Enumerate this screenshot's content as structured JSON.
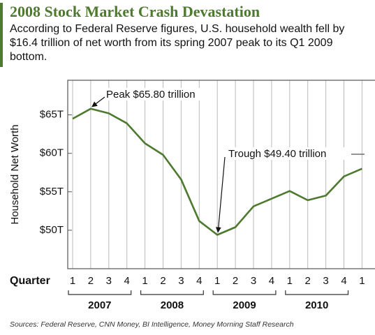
{
  "title": "2008 Stock Market Crash Devastation",
  "subtitle": "According to Federal Reserve figures, U.S. household wealth fell by $16.4 trillion of net worth from its spring 2007 peak to its Q1 2009 bottom.",
  "source": "Sources: Federal Reserve, CNN Money, BI Intelligence, Money Morning Staff Research",
  "chart_data": {
    "type": "line",
    "x_label": "Quarter",
    "y_label": "Household Net Worth",
    "categories": [
      "1",
      "2",
      "3",
      "4",
      "1",
      "2",
      "3",
      "4",
      "1",
      "2",
      "3",
      "4",
      "1",
      "2",
      "3",
      "4",
      "1"
    ],
    "year_groups": [
      "2007",
      "2008",
      "2009",
      "2010"
    ],
    "series": [
      {
        "name": "Household Net Worth",
        "color": "#4e7a2f",
        "values": [
          64.5,
          65.8,
          65.2,
          63.9,
          61.3,
          59.8,
          56.6,
          51.2,
          49.4,
          50.4,
          53.1,
          54.1,
          55.1,
          53.9,
          54.5,
          57.0,
          58.0
        ]
      }
    ],
    "annotations": [
      "Peak $65.80 trillion",
      "Trough $49.40 trillion"
    ],
    "ylim": [
      45,
      69.5
    ],
    "yticks": [
      {
        "value": 50,
        "label": "$50T"
      },
      {
        "value": 55,
        "label": "$55T"
      },
      {
        "value": 60,
        "label": "$60T"
      },
      {
        "value": 65,
        "label": "$65T"
      }
    ],
    "grid": "x"
  }
}
